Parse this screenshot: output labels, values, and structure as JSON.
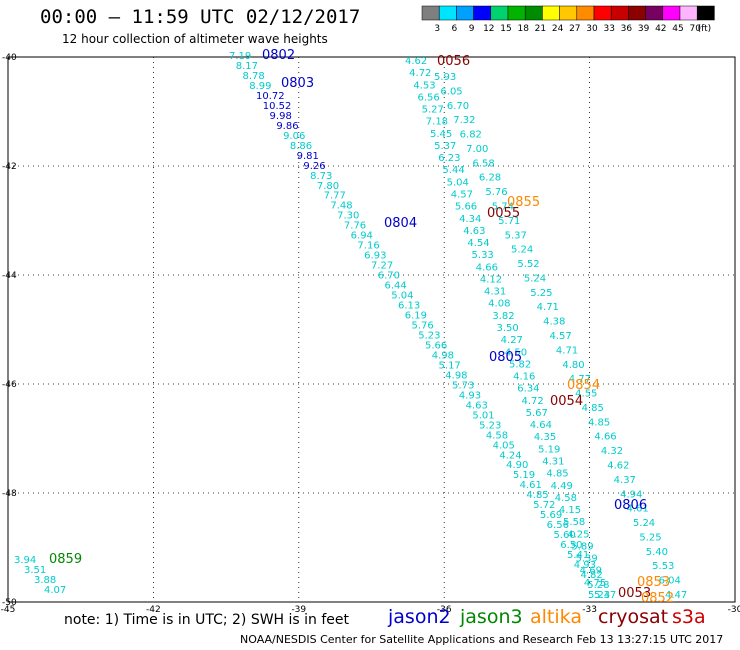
{
  "title": "00:00 – 11:59 UTC 02/12/2017",
  "subtitle": "12 hour collection of altimeter wave heights",
  "legend": {
    "unit": "(ft)",
    "bins": [
      {
        "label": "3",
        "color": "#7f7f7f"
      },
      {
        "label": "6",
        "color": "#00e5ff"
      },
      {
        "label": "9",
        "color": "#00a0ff"
      },
      {
        "label": "12",
        "color": "#0000ff"
      },
      {
        "label": "15",
        "color": "#00d26e"
      },
      {
        "label": "18",
        "color": "#00b400"
      },
      {
        "label": "21",
        "color": "#008c00"
      },
      {
        "label": "24",
        "color": "#ffff00"
      },
      {
        "label": "27",
        "color": "#ffc800"
      },
      {
        "label": "30",
        "color": "#ff8c00"
      },
      {
        "label": "33",
        "color": "#ff0000"
      },
      {
        "label": "36",
        "color": "#c80000"
      },
      {
        "label": "39",
        "color": "#8c0000"
      },
      {
        "label": "42",
        "color": "#780060"
      },
      {
        "label": "45",
        "color": "#ff00ff"
      },
      {
        "label": "70",
        "color": "#ffb4ff"
      },
      {
        "label": "",
        "color": "#000000"
      }
    ]
  },
  "colors": {
    "jason2": "#0000cc",
    "jason3": "#008800",
    "altika": "#ff8800",
    "cryosat": "#880000",
    "s3a": "#cc0000",
    "wave": "#00cccc",
    "wave_blue": "#0000cc"
  },
  "map": {
    "x_ticks": [
      "-45",
      "-42",
      "-39",
      "-36",
      "-33",
      "-30"
    ],
    "y_ticks": [
      "-40",
      "-42",
      "-44",
      "-46",
      "-48",
      "-50"
    ],
    "lon_range": [
      -45,
      -30
    ],
    "lat_range": [
      -50,
      -40
    ]
  },
  "tracks": {
    "jason2_heights": [
      "7.19",
      "8.17",
      "8.78",
      "8.99",
      "10.72",
      "10.52",
      "9.98",
      "9.86",
      "9.06",
      "8.86",
      "9.81",
      "9.26",
      "8.73",
      "7.80",
      "7.77",
      "7.48",
      "7.30",
      "7.76",
      "6.94",
      "7.16",
      "6.93",
      "7.27",
      "6.70",
      "6.44",
      "5.04",
      "6.13",
      "6.19",
      "5.76",
      "5.23",
      "5.66",
      "4.98",
      "5.17",
      "4.98",
      "5.73",
      "4.93",
      "4.63",
      "5.01",
      "5.23",
      "4.58",
      "4.05",
      "4.24",
      "4.90",
      "5.19",
      "4.61",
      "4.85",
      "5.72",
      "5.69",
      "6.56",
      "5.60",
      "6.50",
      "5.41",
      "4.93",
      "4.82",
      "5.28",
      "5.37"
    ],
    "cryosat_heights": [
      "4.62",
      "4.72",
      "4.53",
      "6.56",
      "5.27",
      "7.18",
      "5.45",
      "5.37",
      "6.23",
      "5.44",
      "5.04",
      "4.57",
      "5.66",
      "4.34",
      "4.63",
      "4.54",
      "5.33",
      "4.66",
      "4.12",
      "4.31",
      "4.08",
      "3.82",
      "3.50",
      "4.27",
      "4.50",
      "5.82",
      "4.16",
      "6.34",
      "4.72",
      "5.67",
      "4.64",
      "4.35",
      "5.19",
      "4.31",
      "4.85",
      "4.49",
      "4.58",
      "4.15",
      "5.58",
      "4.25",
      "5.89",
      "5.39",
      "4.69",
      "4.75",
      "5.24"
    ],
    "cryosat_heights2": [
      "5.93",
      "6.05",
      "6.70",
      "7.32",
      "6.82",
      "7.00",
      "6.58",
      "6.28",
      "5.76",
      "5.74",
      "5.71",
      "5.37",
      "5.24",
      "5.52",
      "5.24",
      "5.25",
      "4.71",
      "4.38",
      "4.57",
      "4.71",
      "4.80",
      "4.77",
      "4.55",
      "4.85",
      "4.85",
      "4.66",
      "4.32",
      "4.62",
      "4.37",
      "4.94",
      "4.61",
      "5.24",
      "5.25",
      "5.40",
      "5.53",
      "6.04",
      "4.47"
    ],
    "labels": [
      {
        "text": "0802",
        "sat": "jason2"
      },
      {
        "text": "0803",
        "sat": "jason2"
      },
      {
        "text": "0804",
        "sat": "jason2"
      },
      {
        "text": "0805",
        "sat": "jason2"
      },
      {
        "text": "0806",
        "sat": "jason2"
      },
      {
        "text": "0056",
        "sat": "cryosat"
      },
      {
        "text": "0855",
        "sat": "altika"
      },
      {
        "text": "0055",
        "sat": "cryosat"
      },
      {
        "text": "0854",
        "sat": "altika"
      },
      {
        "text": "0054",
        "sat": "cryosat"
      },
      {
        "text": "0053",
        "sat": "cryosat"
      },
      {
        "text": "0853",
        "sat": "altika"
      },
      {
        "text": "0852",
        "sat": "altika"
      },
      {
        "text": "0859",
        "sat": "jason3"
      }
    ],
    "jason3_heights": [
      "3.94",
      "3.51",
      "3.88",
      "4.07"
    ]
  },
  "note": "note: 1) Time is in UTC; 2) SWH is in feet",
  "satellites": {
    "jason2": "jason2",
    "jason3": "jason3",
    "altika": "altika",
    "cryosat": "cryosat",
    "s3a": "s3a"
  },
  "footer": "NOAA/NESDIS Center for Satellite Applications and Research    Feb 13 13:27:15 UTC 2017"
}
